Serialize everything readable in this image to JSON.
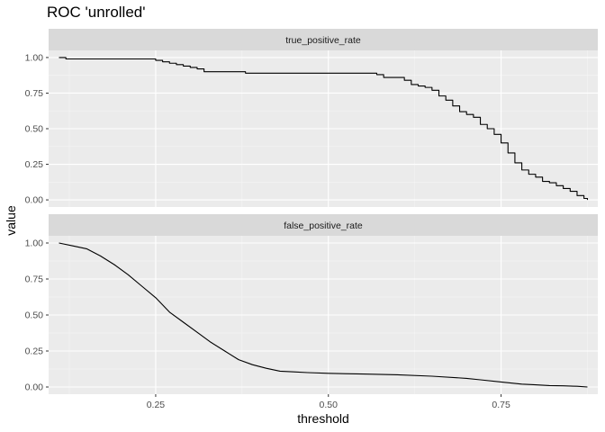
{
  "chart_data": {
    "type": "line",
    "title": "ROC 'unrolled'",
    "xlabel": "threshold",
    "ylabel": "value",
    "xlim": [
      0.095,
      0.89
    ],
    "ylim": [
      -0.05,
      1.05
    ],
    "x_ticks": [
      0.25,
      0.5,
      0.75
    ],
    "x_tick_labels": [
      "0.25",
      "0.50",
      "0.75"
    ],
    "y_ticks": [
      0,
      0.25,
      0.5,
      0.75,
      1
    ],
    "y_tick_labels": [
      "0.00",
      "0.25",
      "0.50",
      "0.75",
      "1.00"
    ],
    "grid": true,
    "facets": [
      {
        "strip_label": "true_positive_rate",
        "series": [
          {
            "step": true,
            "x": [
              0.11,
              0.12,
              0.12,
              0.13,
              0.24,
              0.25,
              0.26,
              0.27,
              0.28,
              0.29,
              0.3,
              0.31,
              0.32,
              0.35,
              0.38,
              0.4,
              0.45,
              0.5,
              0.54,
              0.56,
              0.57,
              0.58,
              0.6,
              0.61,
              0.62,
              0.63,
              0.64,
              0.65,
              0.66,
              0.67,
              0.68,
              0.69,
              0.7,
              0.71,
              0.72,
              0.73,
              0.74,
              0.75,
              0.76,
              0.77,
              0.78,
              0.79,
              0.8,
              0.81,
              0.82,
              0.83,
              0.84,
              0.85,
              0.86,
              0.87,
              0.875
            ],
            "y": [
              1.0,
              1.0,
              0.99,
              0.99,
              0.99,
              0.98,
              0.97,
              0.96,
              0.95,
              0.94,
              0.93,
              0.92,
              0.9,
              0.9,
              0.89,
              0.89,
              0.89,
              0.89,
              0.89,
              0.89,
              0.88,
              0.86,
              0.86,
              0.84,
              0.81,
              0.8,
              0.79,
              0.77,
              0.73,
              0.7,
              0.66,
              0.62,
              0.6,
              0.58,
              0.53,
              0.5,
              0.46,
              0.4,
              0.33,
              0.26,
              0.21,
              0.18,
              0.16,
              0.13,
              0.12,
              0.1,
              0.08,
              0.06,
              0.03,
              0.01,
              0.0
            ]
          }
        ]
      },
      {
        "strip_label": "false_positive_rate",
        "series": [
          {
            "step": false,
            "x": [
              0.11,
              0.13,
              0.15,
              0.17,
              0.19,
              0.21,
              0.23,
              0.25,
              0.27,
              0.29,
              0.31,
              0.33,
              0.35,
              0.37,
              0.39,
              0.41,
              0.43,
              0.45,
              0.47,
              0.5,
              0.55,
              0.6,
              0.65,
              0.7,
              0.72,
              0.75,
              0.78,
              0.8,
              0.82,
              0.84,
              0.86,
              0.875
            ],
            "y": [
              1.0,
              0.98,
              0.96,
              0.91,
              0.85,
              0.78,
              0.7,
              0.62,
              0.52,
              0.45,
              0.38,
              0.31,
              0.25,
              0.19,
              0.155,
              0.13,
              0.11,
              0.105,
              0.1,
              0.095,
              0.09,
              0.085,
              0.075,
              0.06,
              0.05,
              0.035,
              0.02,
              0.015,
              0.01,
              0.008,
              0.005,
              0.0
            ]
          }
        ]
      }
    ]
  }
}
